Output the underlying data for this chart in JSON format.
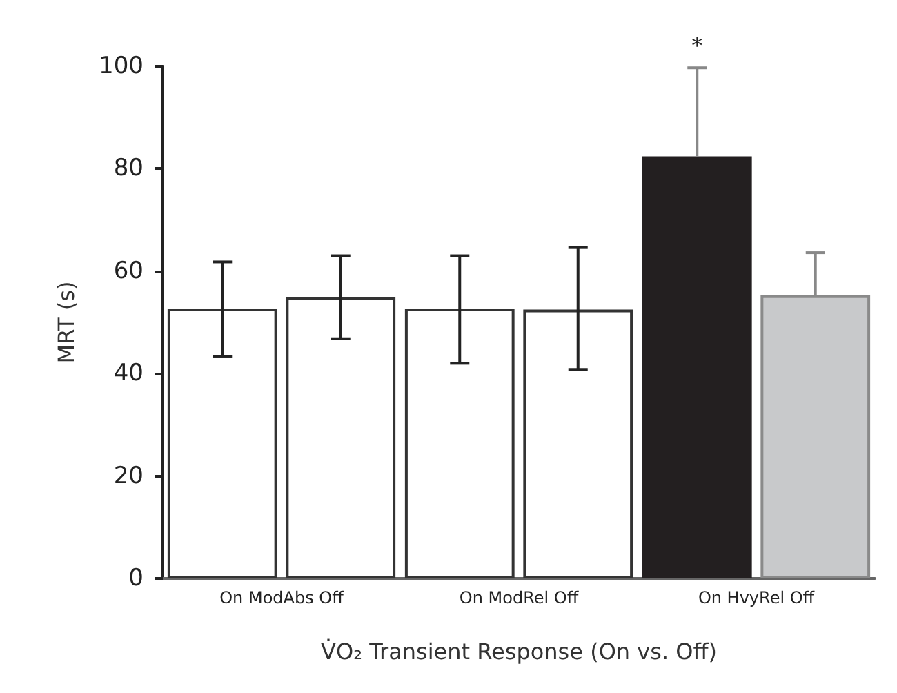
{
  "chart_data": {
    "type": "bar",
    "xlabel": "V̇O₂ Transient Response (On vs. Off)",
    "ylabel": "MRT (s)",
    "categories": [
      "On ModAbs Off",
      "On ModRel Off",
      "On HvyRel Off"
    ],
    "series": [
      {
        "colors": [
          "#ffffff",
          "#ffffff",
          "#231f20"
        ],
        "values": [
          52.7,
          52.7,
          82.4
        ],
        "errors": [
          [
            43.4,
            61.8
          ],
          [
            42,
            63
          ],
          [
            82.4,
            99.7
          ]
        ]
      },
      {
        "colors": [
          "#ffffff",
          "#ffffff",
          "#c8c9cb"
        ],
        "values": [
          55,
          52.5,
          55.3
        ],
        "errors": [
          [
            46.8,
            63
          ],
          [
            40.8,
            64.6
          ],
          [
            55.3,
            63.6
          ]
        ]
      }
    ],
    "ylim": [
      0,
      100
    ],
    "yticks": [
      0,
      20,
      40,
      60,
      80,
      100
    ],
    "grid": false,
    "annotations": [
      "*"
    ]
  }
}
